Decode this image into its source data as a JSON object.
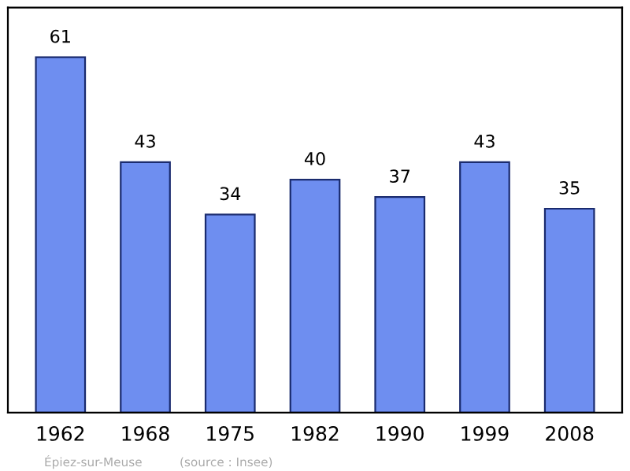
{
  "chart_data": {
    "type": "bar",
    "categories": [
      "1962",
      "1968",
      "1975",
      "1982",
      "1990",
      "1999",
      "2008"
    ],
    "values": [
      61,
      43,
      34,
      40,
      37,
      43,
      35
    ],
    "color": "#6e8ef0",
    "data_labels": true,
    "grid": false,
    "legend": false,
    "annotations": [
      "Épiez-sur-Meuse",
      "(source : Insee)"
    ]
  }
}
